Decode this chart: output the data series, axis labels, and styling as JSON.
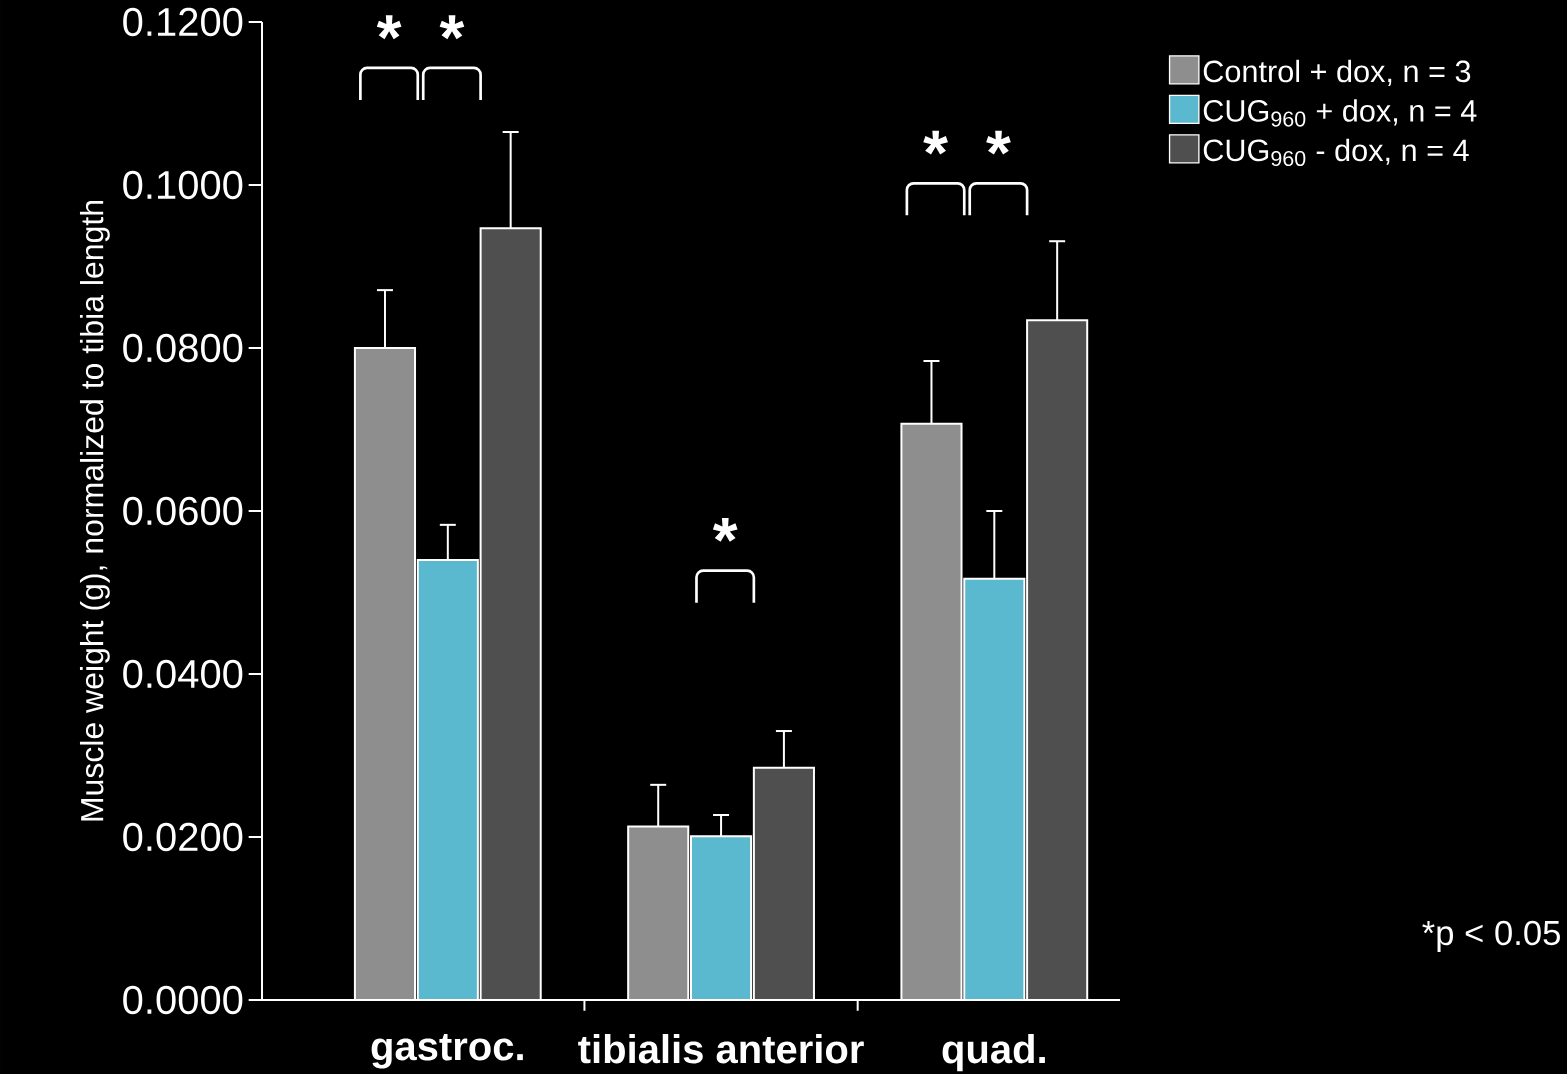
{
  "chart_data": {
    "type": "bar",
    "ylabel": "Muscle weight (g), normalized to tibia length",
    "categories": [
      "gastroc.",
      "tibialis anterior",
      "quad."
    ],
    "series": [
      {
        "name": "Control + dox, n = 3",
        "color": "#8e8e8e",
        "values": [
          0.08,
          0.0213,
          0.0707
        ],
        "errors": [
          [
            0.08,
            0.0871
          ],
          [
            0.0213,
            0.0264
          ],
          [
            0.0707,
            0.0784
          ]
        ]
      },
      {
        "name": "CUG$_{960}$ + dox, n = 4",
        "color": "#5ab8cf",
        "values": [
          0.054,
          0.0201,
          0.0517
        ],
        "errors": [
          [
            0.054,
            0.0583
          ],
          [
            0.0201,
            0.0227
          ],
          [
            0.0517,
            0.06
          ]
        ]
      },
      {
        "name": "CUG$_{960}$ - dox, n = 4",
        "color": "#4f4f4f",
        "values": [
          0.0947,
          0.0285,
          0.0834
        ],
        "errors": [
          [
            0.0947,
            0.1065
          ],
          [
            0.0285,
            0.033
          ],
          [
            0.0834,
            0.0931
          ]
        ]
      }
    ],
    "ylim": [
      0,
      0.12
    ],
    "yticks": [
      {
        "value": 0,
        "label": "0.0000"
      },
      {
        "value": 0.02,
        "label": "0.0200"
      },
      {
        "value": 0.04,
        "label": "0.0400"
      },
      {
        "value": 0.06,
        "label": "0.0600"
      },
      {
        "value": 0.08,
        "label": "0.0800"
      },
      {
        "value": 0.1,
        "label": "0.1000"
      },
      {
        "value": 0.12,
        "label": "0.1200"
      }
    ],
    "legend": "top right",
    "annotations": [
      "*",
      "*",
      "*",
      "*",
      "*",
      "*p < 0.05"
    ]
  }
}
